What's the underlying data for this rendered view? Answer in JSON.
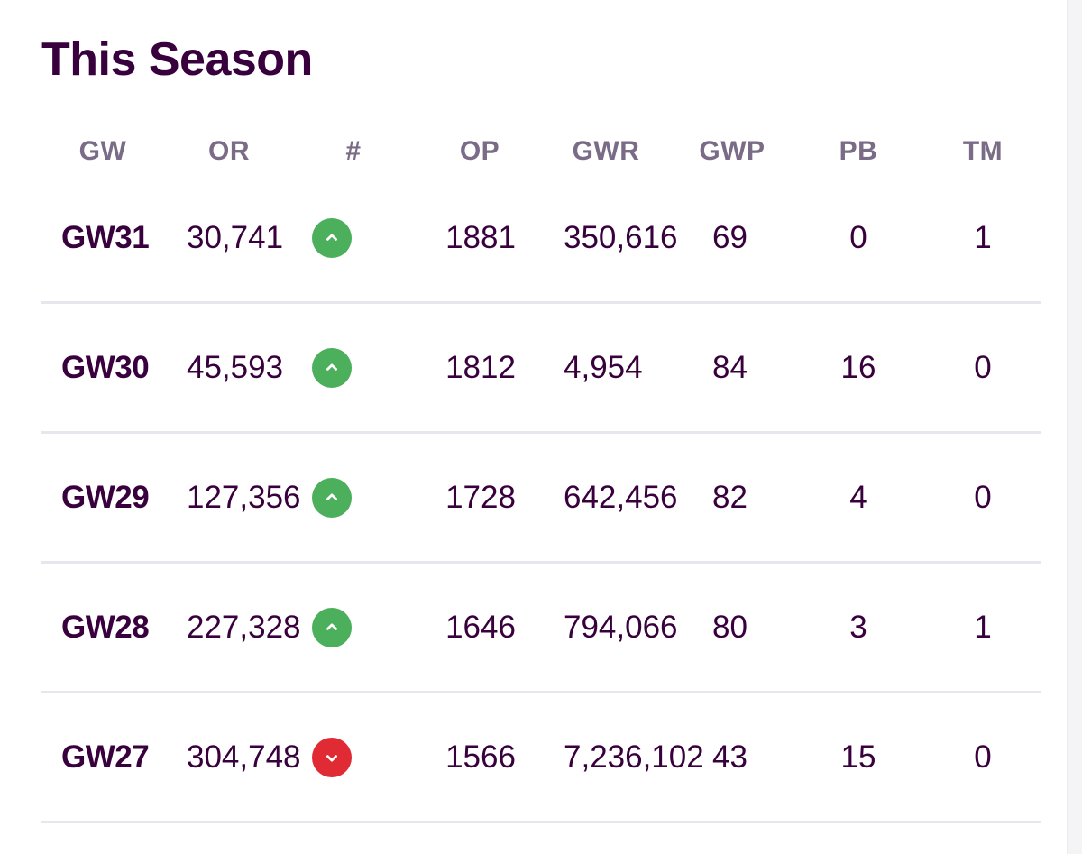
{
  "section": {
    "title": "This Season"
  },
  "columns": {
    "gw": "GW",
    "or": "OR",
    "hash": "#",
    "op": "OP",
    "gwr": "GWR",
    "gwp": "GWP",
    "pb": "PB",
    "tm": "TM"
  },
  "rows": [
    {
      "gw": "GW31",
      "or": "30,741",
      "movement": "up",
      "op": "1881",
      "gwr": "350,616",
      "gwp": "69",
      "pb": "0",
      "tm": "1"
    },
    {
      "gw": "GW30",
      "or": "45,593",
      "movement": "up",
      "op": "1812",
      "gwr": "4,954",
      "gwp": "84",
      "pb": "16",
      "tm": "0"
    },
    {
      "gw": "GW29",
      "or": "127,356",
      "movement": "up",
      "op": "1728",
      "gwr": "642,456",
      "gwp": "82",
      "pb": "4",
      "tm": "0"
    },
    {
      "gw": "GW28",
      "or": "227,328",
      "movement": "up",
      "op": "1646",
      "gwr": "794,066",
      "gwp": "80",
      "pb": "3",
      "tm": "1"
    },
    {
      "gw": "GW27",
      "or": "304,748",
      "movement": "down",
      "op": "1566",
      "gwr": "7,236,102",
      "gwp": "43",
      "pb": "15",
      "tm": "0"
    }
  ],
  "colors": {
    "text": "#38003c",
    "header_text": "#7a6b86",
    "up": "#4caf5c",
    "down": "#e02b35",
    "divider": "#e8e6ec"
  },
  "icons": {
    "up": "chevron-up-icon",
    "down": "chevron-down-icon"
  }
}
